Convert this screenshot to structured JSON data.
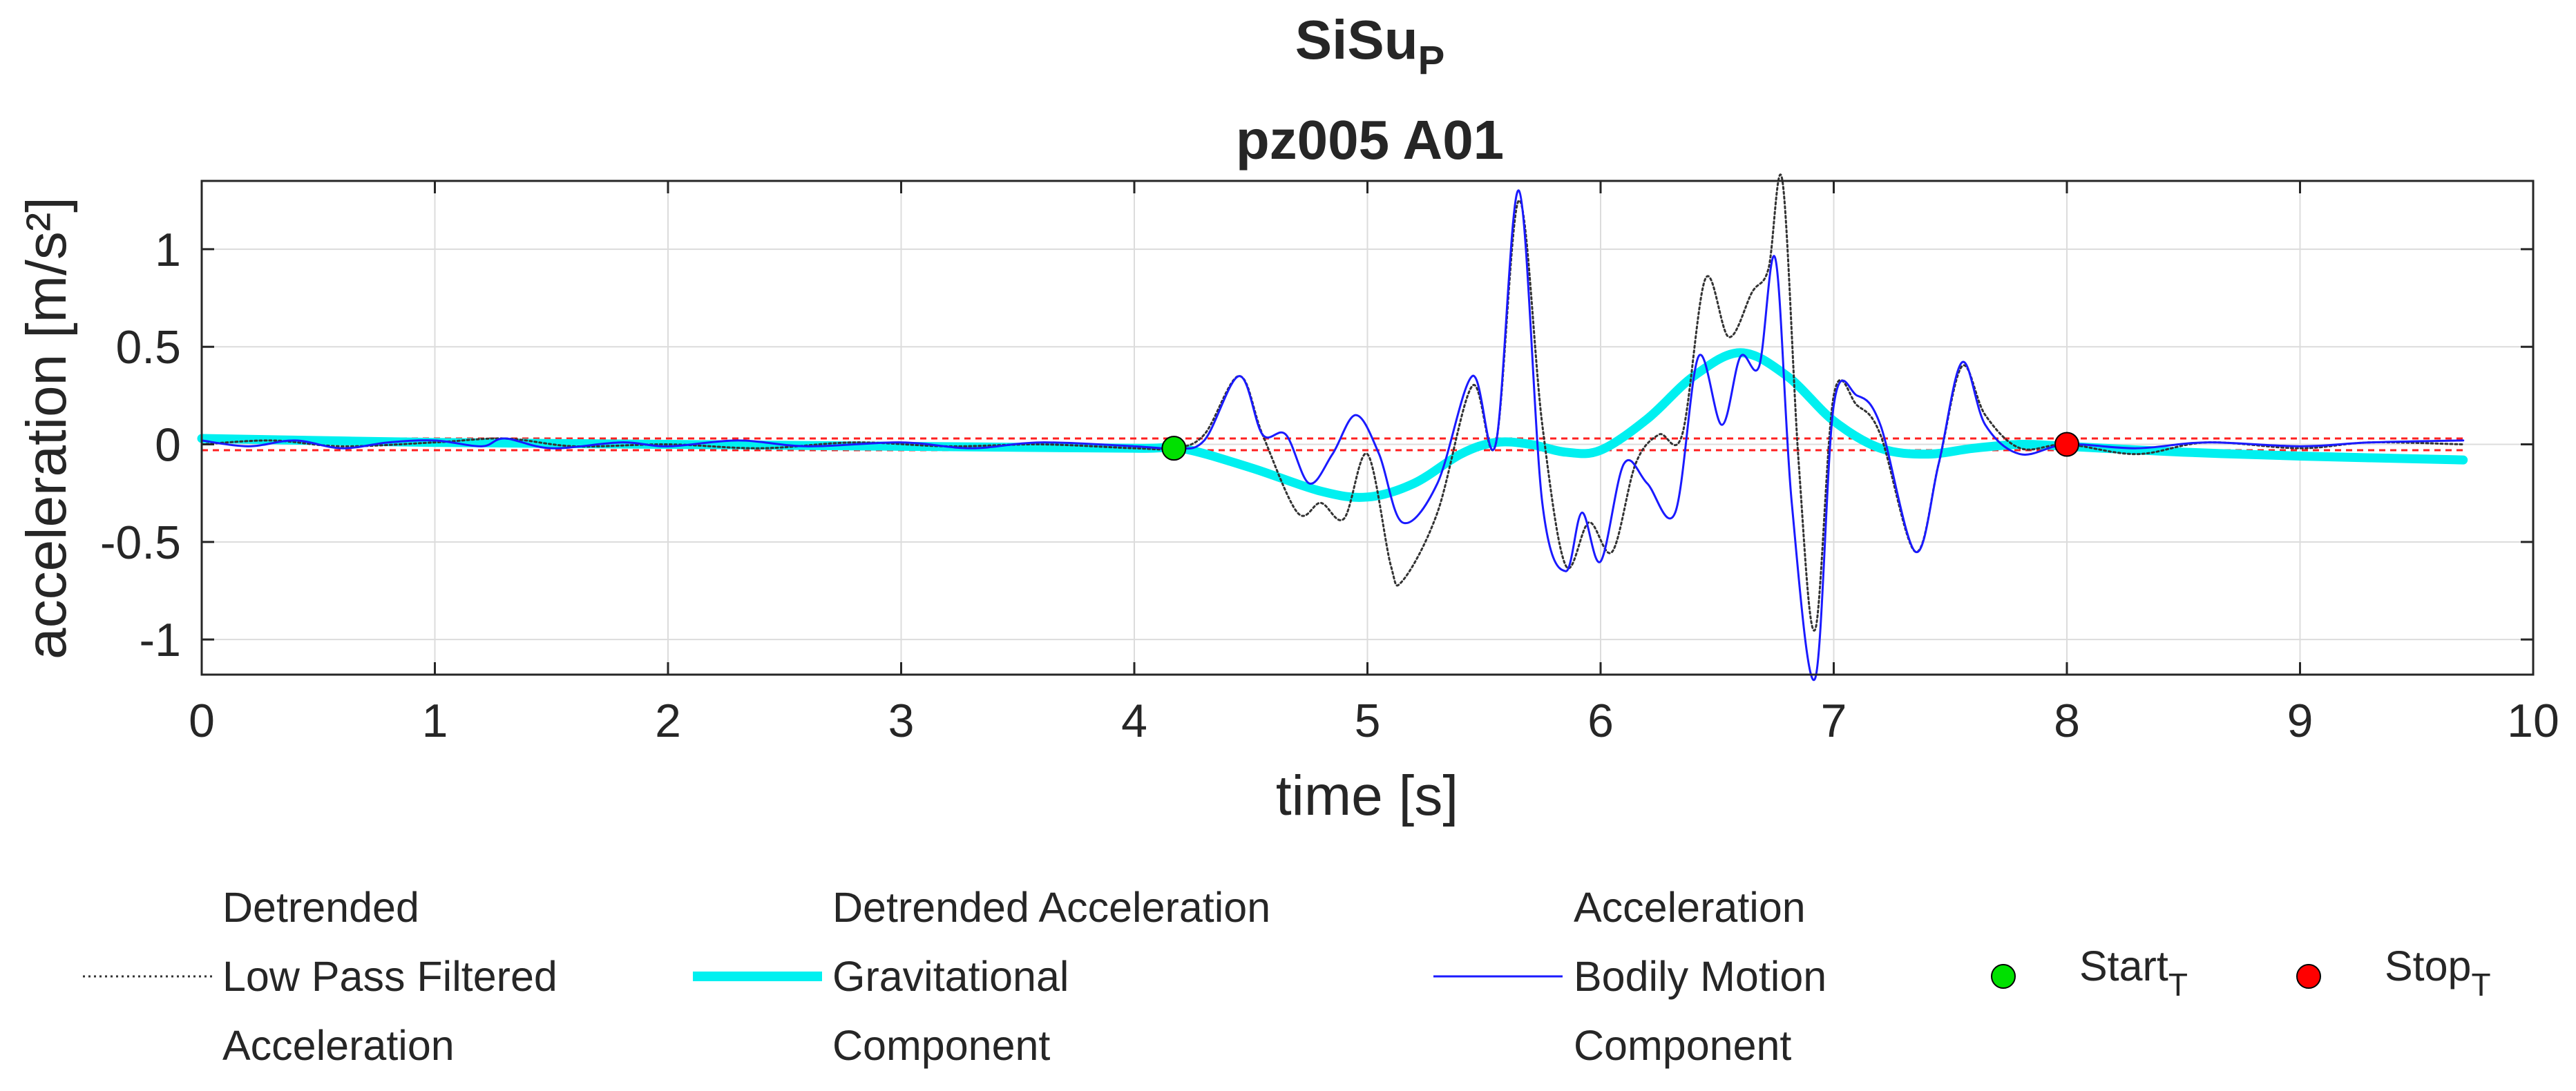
{
  "chart_data": {
    "type": "line",
    "title_main": "SiSu",
    "title_sub": "P",
    "subtitle": "pz005 A01",
    "xlabel": "time [s]",
    "ylabel": "acceleration [m/s²]",
    "xlim": [
      0,
      10
    ],
    "ylim": [
      -1.18,
      1.35
    ],
    "xticks": [
      0,
      1,
      2,
      3,
      4,
      5,
      6,
      7,
      8,
      9,
      10
    ],
    "xtick_labels": [
      "0",
      "1",
      "2",
      "3",
      "4",
      "5",
      "6",
      "7",
      "8",
      "9",
      "10"
    ],
    "yticks": [
      -1,
      -0.5,
      0,
      0.5,
      1
    ],
    "ytick_labels": [
      "-1",
      "-0.5",
      "0",
      "0.5",
      "1"
    ],
    "grid": true,
    "thresholds": [
      0.03,
      -0.03
    ],
    "series": [
      {
        "name": "Detrended Low Pass Filtered Acceleration",
        "legend_lines": [
          "Detrended",
          "Low Pass Filtered",
          "Acceleration"
        ],
        "color": "#333333",
        "style": "dotted",
        "x": [
          0,
          0.3,
          0.6,
          1.0,
          1.3,
          1.6,
          2.0,
          2.4,
          2.8,
          3.2,
          3.6,
          4.0,
          4.17,
          4.3,
          4.45,
          4.55,
          4.7,
          4.8,
          4.9,
          5.0,
          5.1,
          5.15,
          5.3,
          5.45,
          5.55,
          5.65,
          5.75,
          5.85,
          5.95,
          6.05,
          6.15,
          6.25,
          6.35,
          6.45,
          6.55,
          6.65,
          6.72,
          6.78,
          6.85,
          6.92,
          7.0,
          7.1,
          7.2,
          7.35,
          7.45,
          7.55,
          7.65,
          7.8,
          8.0,
          8.3,
          8.6,
          9.0,
          9.3,
          9.7
        ],
        "y": [
          0.0,
          0.02,
          -0.01,
          0.01,
          0.03,
          -0.01,
          0.0,
          -0.02,
          0.01,
          -0.01,
          0.0,
          -0.02,
          -0.02,
          0.05,
          0.35,
          0.05,
          -0.35,
          -0.3,
          -0.38,
          -0.05,
          -0.62,
          -0.7,
          -0.35,
          0.3,
          0.0,
          1.25,
          0.1,
          -0.62,
          -0.4,
          -0.55,
          -0.1,
          0.05,
          0.05,
          0.85,
          0.55,
          0.78,
          0.9,
          1.35,
          -0.1,
          -0.95,
          0.25,
          0.2,
          0.05,
          -0.55,
          -0.1,
          0.4,
          0.15,
          -0.02,
          0.0,
          -0.05,
          0.01,
          -0.02,
          0.01,
          0.0
        ]
      },
      {
        "name": "Detrended Acceleration Gravitational Component",
        "legend_lines": [
          "Detrended Acceleration",
          "Gravitational",
          "Component"
        ],
        "color": "#00f0f0",
        "style": "thick",
        "x": [
          0,
          1,
          2,
          3,
          4,
          4.2,
          4.5,
          4.8,
          5.0,
          5.2,
          5.4,
          5.55,
          5.7,
          5.85,
          6.0,
          6.2,
          6.4,
          6.6,
          6.8,
          7.0,
          7.2,
          7.4,
          7.6,
          7.8,
          8.0,
          8.5,
          9.0,
          9.7
        ],
        "y": [
          0.03,
          0.01,
          0.0,
          -0.01,
          -0.02,
          -0.02,
          -0.12,
          -0.24,
          -0.27,
          -0.2,
          -0.05,
          0.01,
          0.0,
          -0.04,
          -0.03,
          0.13,
          0.35,
          0.47,
          0.35,
          0.12,
          -0.02,
          -0.05,
          -0.02,
          0.0,
          -0.01,
          -0.04,
          -0.06,
          -0.08
        ]
      },
      {
        "name": "Acceleration Bodily Motion Component",
        "legend_lines": [
          "Acceleration",
          "Bodily Motion",
          "Component"
        ],
        "color": "#1a1aff",
        "style": "solid",
        "x": [
          0,
          0.2,
          0.4,
          0.6,
          0.8,
          1.0,
          1.2,
          1.3,
          1.5,
          1.8,
          2.0,
          2.3,
          2.6,
          3.0,
          3.3,
          3.6,
          4.0,
          4.17,
          4.3,
          4.45,
          4.55,
          4.65,
          4.75,
          4.85,
          4.95,
          5.05,
          5.15,
          5.3,
          5.45,
          5.55,
          5.65,
          5.75,
          5.85,
          5.92,
          6.0,
          6.1,
          6.2,
          6.32,
          6.42,
          6.52,
          6.6,
          6.68,
          6.75,
          6.82,
          6.92,
          7.0,
          7.1,
          7.2,
          7.35,
          7.45,
          7.55,
          7.65,
          7.8,
          8.0,
          8.3,
          8.6,
          9.0,
          9.3,
          9.7
        ],
        "y": [
          0.02,
          -0.01,
          0.02,
          -0.02,
          0.01,
          0.02,
          -0.01,
          0.03,
          -0.02,
          0.01,
          -0.01,
          0.02,
          -0.01,
          0.01,
          -0.02,
          0.01,
          -0.01,
          -0.02,
          0.02,
          0.35,
          0.05,
          0.05,
          -0.2,
          -0.05,
          0.15,
          -0.05,
          -0.4,
          -0.2,
          0.35,
          0.0,
          1.3,
          -0.3,
          -0.65,
          -0.35,
          -0.6,
          -0.1,
          -0.2,
          -0.35,
          0.45,
          0.1,
          0.45,
          0.4,
          0.95,
          -0.3,
          -1.2,
          0.2,
          0.25,
          0.1,
          -0.55,
          -0.1,
          0.42,
          0.1,
          -0.05,
          0.0,
          -0.02,
          0.01,
          -0.01,
          0.01,
          0.02
        ]
      }
    ],
    "markers": [
      {
        "name": "Start",
        "subscript": "T",
        "x": 4.17,
        "y": -0.02,
        "color": "#00e000"
      },
      {
        "name": "Stop",
        "subscript": "T",
        "x": 8.0,
        "y": 0.0,
        "color": "#ff0000"
      }
    ],
    "legend_location": "bottom, outside"
  }
}
